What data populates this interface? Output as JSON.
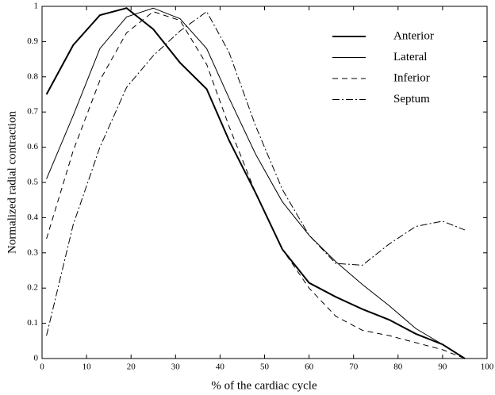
{
  "chart_data": {
    "type": "line",
    "xlabel": "% of the cardiac cycle",
    "ylabel": "Normalized radial contraction",
    "x": [
      1,
      7,
      13,
      19,
      25,
      31,
      37,
      42,
      48,
      54,
      60,
      66,
      72,
      78,
      84,
      90,
      95
    ],
    "series": [
      {
        "name": "Anterior",
        "color": "#000000",
        "dash": "solid",
        "linewidth": 2,
        "values": [
          0.75,
          0.89,
          0.975,
          0.995,
          0.935,
          0.84,
          0.765,
          0.62,
          0.47,
          0.31,
          0.215,
          0.175,
          0.14,
          0.11,
          0.07,
          0.04,
          0
        ]
      },
      {
        "name": "Lateral",
        "color": "#000000",
        "dash": "solid",
        "linewidth": 1,
        "values": [
          0.51,
          0.69,
          0.88,
          0.97,
          0.995,
          0.965,
          0.88,
          0.74,
          0.58,
          0.445,
          0.35,
          0.275,
          0.21,
          0.15,
          0.085,
          0.04,
          0
        ]
      },
      {
        "name": "Inferior",
        "color": "#000000",
        "dash": "dashed",
        "linewidth": 1,
        "values": [
          0.34,
          0.59,
          0.79,
          0.925,
          0.985,
          0.96,
          0.835,
          0.66,
          0.47,
          0.31,
          0.2,
          0.12,
          0.08,
          0.065,
          0.045,
          0.025,
          0
        ]
      },
      {
        "name": "Septum",
        "color": "#000000",
        "dash": "dashdot",
        "linewidth": 1,
        "values": [
          0.065,
          0.38,
          0.6,
          0.77,
          0.86,
          0.93,
          0.985,
          0.87,
          0.66,
          0.48,
          0.35,
          0.27,
          0.265,
          0.325,
          0.375,
          0.39,
          0.365
        ]
      }
    ],
    "xlim": [
      0,
      100
    ],
    "xticks": [
      0,
      10,
      20,
      30,
      40,
      50,
      60,
      70,
      80,
      90,
      100
    ],
    "ylim": [
      0,
      1
    ],
    "yticks": [
      0,
      0.1,
      0.2,
      0.3,
      0.4,
      0.5,
      0.6,
      0.7,
      0.8,
      0.9,
      1
    ],
    "grid": false,
    "legend": "upper right"
  }
}
